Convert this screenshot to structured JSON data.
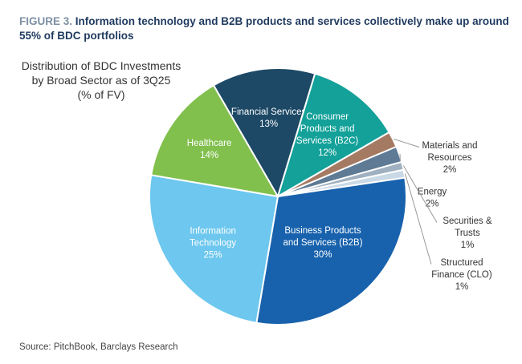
{
  "figure": {
    "label": "FIGURE 3.",
    "title": "Information technology and B2B products and services collectively make up around 55% of BDC portfolios"
  },
  "chart_data": {
    "type": "pie",
    "title": "Distribution of BDC Investments by Broad Sector as of 3Q25 (% of FV)",
    "title_lines": [
      "Distribution of BDC Investments",
      "by Broad Sector as of 3Q25",
      "(% of FV)"
    ],
    "slices": [
      {
        "name": "Financial Services",
        "label_lines": [
          "Financial Services"
        ],
        "value": 13,
        "value_label": "13%",
        "color": "#1d4966",
        "label_inside": true,
        "label_color": "#ffffff"
      },
      {
        "name": "Consumer Products and Services (B2C)",
        "label_lines": [
          "Consumer",
          "Products and",
          "Services (B2C)"
        ],
        "value": 12,
        "value_label": "12%",
        "color": "#13a199",
        "label_inside": true,
        "label_color": "#ffffff"
      },
      {
        "name": "Materials and Resources",
        "label_lines": [
          "Materials and",
          "Resources"
        ],
        "value": 2,
        "value_label": "2%",
        "color": "#a57a62",
        "label_inside": false,
        "label_color": "#333333"
      },
      {
        "name": "Energy",
        "label_lines": [
          "Energy"
        ],
        "value": 2,
        "value_label": "2%",
        "color": "#5e7a95",
        "label_inside": false,
        "label_color": "#333333"
      },
      {
        "name": "Securities & Trusts",
        "label_lines": [
          "Securities &",
          "Trusts"
        ],
        "value": 1,
        "value_label": "1%",
        "color": "#9fb0c0",
        "label_inside": false,
        "label_color": "#333333"
      },
      {
        "name": "Structured Finance (CLO)",
        "label_lines": [
          "Structured",
          "Finance (CLO)"
        ],
        "value": 1,
        "value_label": "1%",
        "color": "#c9d9e6",
        "label_inside": false,
        "label_color": "#333333"
      },
      {
        "name": "Business Products and Services (B2B)",
        "label_lines": [
          "Business Products",
          "and Services (B2B)"
        ],
        "value": 30,
        "value_label": "30%",
        "color": "#1862ad",
        "label_inside": true,
        "label_color": "#ffffff"
      },
      {
        "name": "Information Technology",
        "label_lines": [
          "Information",
          "Technology"
        ],
        "value": 25,
        "value_label": "25%",
        "color": "#6dc7ee",
        "label_inside": true,
        "label_color": "#ffffff"
      },
      {
        "name": "Healthcare",
        "label_lines": [
          "Healthcare"
        ],
        "value": 14,
        "value_label": "14%",
        "color": "#82c04e",
        "label_inside": true,
        "label_color": "#ffffff"
      }
    ]
  },
  "source": "Source: PitchBook, Barclays Research"
}
